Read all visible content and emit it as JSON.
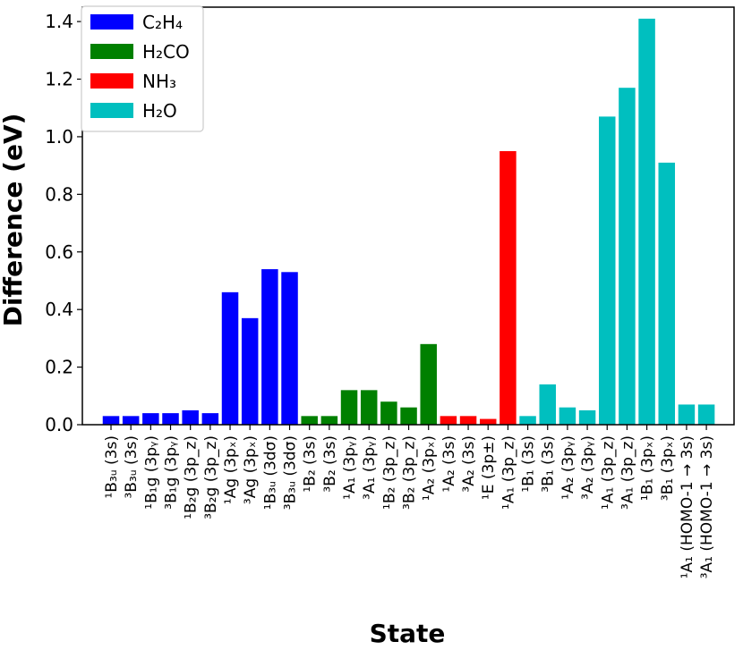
{
  "chart_data": {
    "type": "bar",
    "title": "",
    "xlabel": "State",
    "ylabel": "Difference (eV)",
    "ylim": [
      0,
      1.45
    ],
    "yticks": [
      0.0,
      0.2,
      0.4,
      0.6,
      0.8,
      1.0,
      1.2,
      1.4
    ],
    "ytick_labels": [
      "0.0",
      "0.2",
      "0.4",
      "0.6",
      "0.8",
      "1.0",
      "1.2",
      "1.4"
    ],
    "legend": {
      "location": "top-left",
      "entries": [
        {
          "label": "C₂H₄",
          "color": "#0000ff"
        },
        {
          "label": "H₂CO",
          "color": "#008000"
        },
        {
          "label": "NH₃",
          "color": "#ff0000"
        },
        {
          "label": "H₂O",
          "color": "#00bfbf"
        }
      ]
    },
    "colors": {
      "C2H4": "#0000ff",
      "H2CO": "#008000",
      "NH3": "#ff0000",
      "H2O": "#00bfbf"
    },
    "bars": [
      {
        "category": "¹B₃ᵤ (3s)",
        "value": 0.03,
        "molecule": "C2H4"
      },
      {
        "category": "³B₃ᵤ (3s)",
        "value": 0.03,
        "molecule": "C2H4"
      },
      {
        "category": "¹B₁g (3pᵧ)",
        "value": 0.04,
        "molecule": "C2H4"
      },
      {
        "category": "³B₁g (3pᵧ)",
        "value": 0.04,
        "molecule": "C2H4"
      },
      {
        "category": "¹B₂g (3p_z)",
        "value": 0.05,
        "molecule": "C2H4"
      },
      {
        "category": "³B₂g (3p_z)",
        "value": 0.04,
        "molecule": "C2H4"
      },
      {
        "category": "¹Ag (3pₓ)",
        "value": 0.46,
        "molecule": "C2H4"
      },
      {
        "category": "³Ag (3pₓ)",
        "value": 0.37,
        "molecule": "C2H4"
      },
      {
        "category": "¹B₃ᵤ (3dσ)",
        "value": 0.54,
        "molecule": "C2H4"
      },
      {
        "category": "³B₃ᵤ (3dσ)",
        "value": 0.53,
        "molecule": "C2H4"
      },
      {
        "category": "¹B₂ (3s)",
        "value": 0.03,
        "molecule": "H2CO"
      },
      {
        "category": "³B₂ (3s)",
        "value": 0.03,
        "molecule": "H2CO"
      },
      {
        "category": "¹A₁ (3pᵧ)",
        "value": 0.12,
        "molecule": "H2CO"
      },
      {
        "category": "³A₁ (3pᵧ)",
        "value": 0.12,
        "molecule": "H2CO"
      },
      {
        "category": "¹B₂ (3p_z)",
        "value": 0.08,
        "molecule": "H2CO"
      },
      {
        "category": "³B₂ (3p_z)",
        "value": 0.06,
        "molecule": "H2CO"
      },
      {
        "category": "¹A₂ (3pₓ)",
        "value": 0.28,
        "molecule": "H2CO"
      },
      {
        "category": "¹A₂ (3s)",
        "value": 0.03,
        "molecule": "NH3"
      },
      {
        "category": "³A₂ (3s)",
        "value": 0.03,
        "molecule": "NH3"
      },
      {
        "category": "¹E (3p±)",
        "value": 0.02,
        "molecule": "NH3"
      },
      {
        "category": "¹A₁ (3p_z)",
        "value": 0.95,
        "molecule": "NH3"
      },
      {
        "category": "¹B₁ (3s)",
        "value": 0.03,
        "molecule": "H2O"
      },
      {
        "category": "³B₁ (3s)",
        "value": 0.14,
        "molecule": "H2O"
      },
      {
        "category": "¹A₂ (3pᵧ)",
        "value": 0.06,
        "molecule": "H2O"
      },
      {
        "category": "³A₂ (3pᵧ)",
        "value": 0.05,
        "molecule": "H2O"
      },
      {
        "category": "¹A₁ (3p_z)",
        "value": 1.07,
        "molecule": "H2O"
      },
      {
        "category": "³A₁ (3p_z)",
        "value": 1.17,
        "molecule": "H2O"
      },
      {
        "category": "¹B₁ (3pₓ)",
        "value": 1.41,
        "molecule": "H2O"
      },
      {
        "category": "³B₁ (3pₓ)",
        "value": 0.91,
        "molecule": "H2O"
      },
      {
        "category": "¹A₁ (HOMO-1 → 3s)",
        "value": 0.07,
        "molecule": "H2O"
      },
      {
        "category": "³A₁ (HOMO-1 → 3s)",
        "value": 0.07,
        "molecule": "H2O"
      }
    ]
  }
}
